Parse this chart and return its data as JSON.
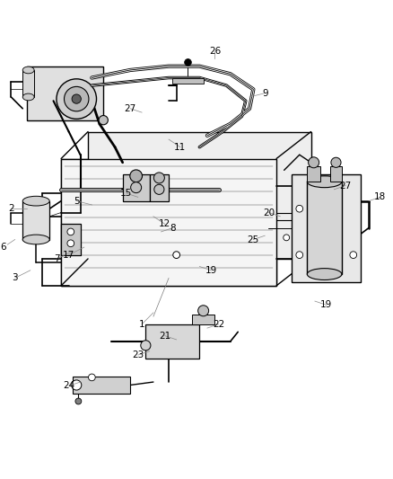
{
  "background_color": "#ffffff",
  "line_color": "#000000",
  "label_color": "#000000",
  "fig_width": 4.38,
  "fig_height": 5.33,
  "dpi": 100,
  "labels_pos": {
    "1": [
      0.38,
      0.69,
      0.35,
      0.72
    ],
    "2": [
      0.05,
      0.42,
      0.01,
      0.42
    ],
    "3": [
      0.06,
      0.58,
      0.02,
      0.6
    ],
    "5": [
      0.22,
      0.41,
      0.18,
      0.4
    ],
    "6": [
      0.02,
      0.5,
      -0.01,
      0.52
    ],
    "7": [
      0.17,
      0.53,
      0.13,
      0.55
    ],
    "8": [
      0.4,
      0.48,
      0.43,
      0.47
    ],
    "9": [
      0.63,
      0.13,
      0.67,
      0.12
    ],
    "11": [
      0.42,
      0.24,
      0.45,
      0.26
    ],
    "12": [
      0.38,
      0.44,
      0.41,
      0.46
    ],
    "15": [
      0.34,
      0.39,
      0.31,
      0.38
    ],
    "17": [
      0.2,
      0.52,
      0.16,
      0.54
    ],
    "18": [
      0.94,
      0.4,
      0.97,
      0.39
    ],
    "19a": [
      0.5,
      0.57,
      0.53,
      0.58
    ],
    "19b": [
      0.8,
      0.66,
      0.83,
      0.67
    ],
    "20": [
      0.71,
      0.44,
      0.68,
      0.43
    ],
    "21": [
      0.44,
      0.76,
      0.41,
      0.75
    ],
    "22": [
      0.52,
      0.73,
      0.55,
      0.72
    ],
    "23": [
      0.37,
      0.79,
      0.34,
      0.8
    ],
    "24": [
      0.19,
      0.87,
      0.16,
      0.88
    ],
    "25": [
      0.67,
      0.49,
      0.64,
      0.5
    ],
    "26": [
      0.54,
      0.03,
      0.54,
      0.01
    ],
    "27a": [
      0.35,
      0.17,
      0.32,
      0.16
    ],
    "27b": [
      0.85,
      0.37,
      0.88,
      0.36
    ]
  },
  "label_display": {
    "1": "1",
    "2": "2",
    "3": "3",
    "5": "5",
    "6": "6",
    "7": "7",
    "8": "8",
    "9": "9",
    "11": "11",
    "12": "12",
    "15": "15",
    "17": "17",
    "18": "18",
    "19a": "19",
    "19b": "19",
    "20": "20",
    "21": "21",
    "22": "22",
    "23": "23",
    "24": "24",
    "25": "25",
    "26": "26",
    "27a": "27",
    "27b": "27"
  }
}
